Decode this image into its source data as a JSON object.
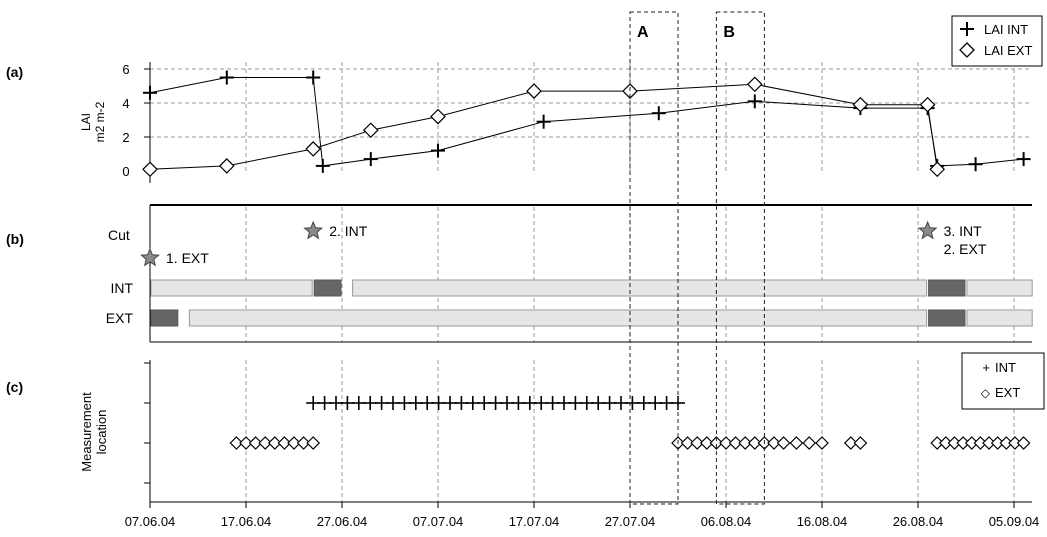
{
  "panels": {
    "a_label": "(a)",
    "b_label": "(b)",
    "c_label": "(c)",
    "box_a_label": "A",
    "box_b_label": "B"
  },
  "chart_data": {
    "type": "line",
    "x_axis": {
      "ticks": [
        "07.06.04",
        "17.06.04",
        "27.06.04",
        "07.07.04",
        "17.07.04",
        "27.07.04",
        "06.08.04",
        "16.08.04",
        "26.08.04",
        "05.09.04"
      ],
      "start": "07.06.04",
      "end": "06.09.04",
      "grid": true
    },
    "panel_a": {
      "ylabel_line1": "LAI",
      "ylabel_line2": "m2 m-2",
      "ylim": [
        0,
        6
      ],
      "yticks": [
        "0",
        "2",
        "4",
        "6"
      ],
      "legend_position": "top-right",
      "series": [
        {
          "name": "LAI INT",
          "marker": "plus",
          "points": [
            {
              "x": "07.06.04",
              "y": 4.6
            },
            {
              "x": "15.06.04",
              "y": 5.5
            },
            {
              "x": "24.06.04",
              "y": 5.5
            },
            {
              "x": "25.06.04",
              "y": 0.3
            },
            {
              "x": "30.06.04",
              "y": 0.7
            },
            {
              "x": "07.07.04",
              "y": 1.2
            },
            {
              "x": "18.07.04",
              "y": 2.9
            },
            {
              "x": "30.07.04",
              "y": 3.4
            },
            {
              "x": "09.08.04",
              "y": 4.1
            },
            {
              "x": "20.08.04",
              "y": 3.7
            },
            {
              "x": "27.08.04",
              "y": 3.7
            },
            {
              "x": "28.08.04",
              "y": 0.3
            },
            {
              "x": "01.09.04",
              "y": 0.4
            },
            {
              "x": "06.09.04",
              "y": 0.7
            }
          ]
        },
        {
          "name": "LAI EXT",
          "marker": "diamond",
          "points": [
            {
              "x": "07.06.04",
              "y": 0.1
            },
            {
              "x": "15.06.04",
              "y": 0.3
            },
            {
              "x": "24.06.04",
              "y": 1.3
            },
            {
              "x": "30.06.04",
              "y": 2.4
            },
            {
              "x": "07.07.04",
              "y": 3.2
            },
            {
              "x": "17.07.04",
              "y": 4.7
            },
            {
              "x": "27.07.04",
              "y": 4.7
            },
            {
              "x": "09.08.04",
              "y": 5.1
            },
            {
              "x": "20.08.04",
              "y": 3.9
            },
            {
              "x": "27.08.04",
              "y": 3.9
            },
            {
              "x": "28.08.04",
              "y": 0.1
            }
          ]
        }
      ]
    },
    "panel_b": {
      "cut_label": "Cut",
      "cuts": [
        {
          "date": "07.06.04",
          "label1": "1. EXT",
          "label2": "",
          "level": "low"
        },
        {
          "date": "24.06.04",
          "label1": "2. INT",
          "label2": "",
          "level": "high"
        },
        {
          "date": "27.08.04",
          "label1": "3. INT",
          "label2": "2. EXT",
          "level": "high"
        }
      ],
      "rows": [
        {
          "label": "INT",
          "segments": [
            {
              "start": "07.06.04",
              "end": "24.06.04",
              "kind": "light"
            },
            {
              "start": "24.06.04",
              "end": "27.06.04",
              "kind": "dark"
            },
            {
              "start": "28.06.04",
              "end": "27.08.04",
              "kind": "light"
            },
            {
              "start": "27.08.04",
              "end": "31.08.04",
              "kind": "dark"
            },
            {
              "start": "31.08.04",
              "end": "07.09.04",
              "kind": "light"
            }
          ]
        },
        {
          "label": "EXT",
          "segments": [
            {
              "start": "07.06.04",
              "end": "10.06.04",
              "kind": "dark"
            },
            {
              "start": "11.06.04",
              "end": "27.08.04",
              "kind": "light"
            },
            {
              "start": "27.08.04",
              "end": "31.08.04",
              "kind": "dark"
            },
            {
              "start": "31.08.04",
              "end": "07.09.04",
              "kind": "light"
            }
          ]
        }
      ]
    },
    "panel_c": {
      "ylabel_line1": "Measurement",
      "ylabel_line2": "location",
      "legend_position": "top-right",
      "legend": [
        {
          "symbol": "+",
          "label": "INT"
        },
        {
          "symbol": "◇",
          "label": "EXT"
        }
      ],
      "series": [
        {
          "name": "INT",
          "marker": "plus",
          "level": 2,
          "ranges": [
            {
              "start": "24.06.04",
              "end": "01.08.04",
              "count": 33
            }
          ]
        },
        {
          "name": "EXT",
          "marker": "diamond",
          "level": 1,
          "ranges": [
            {
              "start": "16.06.04",
              "end": "24.06.04",
              "count": 9
            },
            {
              "start": "01.08.04",
              "end": "11.08.04",
              "count": 11
            },
            {
              "start": "12.08.04",
              "end": "16.08.04",
              "count": 4
            },
            {
              "start": "19.08.04",
              "end": "20.08.04",
              "count": 2
            },
            {
              "start": "28.08.04",
              "end": "06.09.04",
              "count": 11
            }
          ]
        }
      ]
    },
    "highlight_boxes": [
      {
        "label": "A",
        "start": "27.07.04",
        "end": "01.08.04"
      },
      {
        "label": "B",
        "start": "05.08.04",
        "end": "10.08.04"
      }
    ]
  }
}
